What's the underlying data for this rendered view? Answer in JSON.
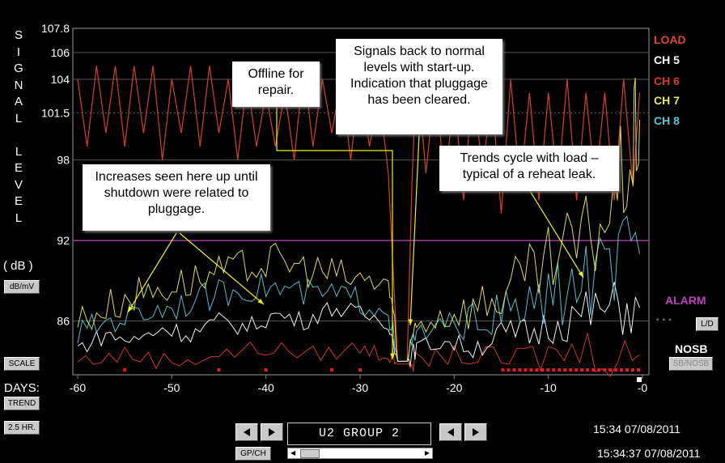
{
  "y_axis_letters": [
    "S",
    "I",
    "G",
    "N",
    "A",
    "L",
    "",
    "L",
    "E",
    "V",
    "E",
    "L"
  ],
  "unit_label": "( dB )",
  "buttons": {
    "db_mv": "dB/mV",
    "scale": "SCALE",
    "trend": "TREND",
    "hr": "2.5 HR.",
    "ld": "L/D",
    "sb_nosb": "SB/NOSB",
    "gp_ch": "GP/CH"
  },
  "days_label": "DAYS:",
  "legend": [
    {
      "label": "LOAD",
      "color": "#e0442a"
    },
    {
      "label": "CH 5",
      "color": "#ffffff"
    },
    {
      "label": "CH 6",
      "color": "#d83a2a"
    },
    {
      "label": "CH 7",
      "color": "#e8e860"
    },
    {
      "label": "CH 8",
      "color": "#58c8d8"
    }
  ],
  "alarm_label": "ALARM",
  "nosb_label": "NOSB",
  "group_label": "U2 GROUP 2",
  "clock_top": "15:34  07/08/2011",
  "clock_bottom": "15:34:37  07/08/2011",
  "callouts": {
    "offline": "Offline for repair.",
    "signals": "Signals back to normal levels with start-up. Indication that pluggage has been cleared.",
    "trends": "Trends cycle with load – typical of a reheat leak.",
    "increases": "Increases seen here up until shutdown were related to pluggage."
  },
  "chart_data": {
    "type": "line",
    "xlabel": "DAYS:",
    "ylabel": "SIGNAL LEVEL ( dB )",
    "xlim": [
      -60,
      0
    ],
    "ylim": [
      82,
      107.8
    ],
    "x_ticks": [
      -60,
      -50,
      -40,
      -30,
      -20,
      -10,
      0
    ],
    "x_tick_labels": [
      "-60",
      "-50",
      "-40",
      "-30",
      "-20",
      "-10",
      "-0"
    ],
    "y_ticks": [
      86,
      92,
      98,
      101.5,
      104,
      106,
      107.8
    ],
    "y_tick_labels": [
      "86",
      "92",
      "98",
      "101.5",
      "104",
      "106",
      "107.8"
    ],
    "alarm_level": 92,
    "series": [
      {
        "name": "LOAD",
        "color": "#e0442a",
        "points": [
          [
            -60,
            104
          ],
          [
            -59,
            99
          ],
          [
            -58,
            105
          ],
          [
            -57,
            100
          ],
          [
            -56,
            105
          ],
          [
            -55,
            99
          ],
          [
            -54,
            105
          ],
          [
            -53,
            100
          ],
          [
            -52,
            105
          ],
          [
            -51,
            98
          ],
          [
            -50,
            104
          ],
          [
            -49,
            100
          ],
          [
            -48,
            105
          ],
          [
            -47,
            99
          ],
          [
            -46,
            105
          ],
          [
            -45,
            100
          ],
          [
            -44,
            104
          ],
          [
            -43,
            98
          ],
          [
            -42,
            104
          ],
          [
            -41,
            99
          ],
          [
            -40,
            103
          ],
          [
            -39,
            99
          ],
          [
            -38,
            103
          ],
          [
            -37,
            98
          ],
          [
            -36,
            105
          ],
          [
            -35,
            99
          ],
          [
            -34,
            104
          ],
          [
            -33,
            100
          ],
          [
            -32,
            104
          ],
          [
            -31,
            98
          ],
          [
            -30,
            104
          ],
          [
            -29,
            99
          ],
          [
            -28,
            103
          ],
          [
            -27,
            97
          ],
          [
            -26,
            83
          ],
          [
            -25,
            83
          ],
          [
            -24.5,
            96
          ],
          [
            -24,
            105
          ],
          [
            -23,
            97
          ],
          [
            -22,
            104
          ],
          [
            -21,
            96
          ],
          [
            -20,
            103
          ],
          [
            -19,
            95
          ],
          [
            -18,
            104
          ],
          [
            -17,
            97
          ],
          [
            -16,
            103
          ],
          [
            -15,
            94
          ],
          [
            -14,
            104
          ],
          [
            -13,
            96
          ],
          [
            -12,
            103
          ],
          [
            -11,
            95
          ],
          [
            -10,
            103
          ],
          [
            -9,
            96
          ],
          [
            -8,
            104
          ],
          [
            -7,
            95
          ],
          [
            -6,
            103
          ],
          [
            -5,
            96
          ],
          [
            -4,
            103
          ],
          [
            -3,
            95
          ],
          [
            -2,
            104
          ],
          [
            -1,
            96
          ],
          [
            -0.3,
            103
          ]
        ]
      },
      {
        "name": "CH 5",
        "color": "#ffffff",
        "points": [
          [
            -60,
            84
          ],
          [
            -57,
            85
          ],
          [
            -54,
            84.5
          ],
          [
            -51,
            85.5
          ],
          [
            -48,
            85
          ],
          [
            -45,
            86
          ],
          [
            -42,
            85.5
          ],
          [
            -39,
            86.5
          ],
          [
            -36,
            86
          ],
          [
            -33,
            87
          ],
          [
            -30,
            86.5
          ],
          [
            -27,
            86
          ],
          [
            -26,
            83
          ],
          [
            -25,
            83
          ],
          [
            -24,
            84
          ],
          [
            -21,
            84.5
          ],
          [
            -18,
            84
          ],
          [
            -15,
            85
          ],
          [
            -12,
            85
          ],
          [
            -9,
            86
          ],
          [
            -6,
            86.5
          ],
          [
            -3,
            87
          ],
          [
            -0.3,
            87
          ]
        ]
      },
      {
        "name": "CH 6",
        "color": "#d83a2a",
        "points": [
          [
            -60,
            83
          ],
          [
            -55,
            83.5
          ],
          [
            -50,
            83
          ],
          [
            -45,
            83.5
          ],
          [
            -40,
            84
          ],
          [
            -35,
            83.5
          ],
          [
            -30,
            84
          ],
          [
            -27,
            83.5
          ],
          [
            -26,
            82.8
          ],
          [
            -25,
            82.8
          ],
          [
            -24,
            83
          ],
          [
            -20,
            83.5
          ],
          [
            -15,
            83
          ],
          [
            -10,
            83.5
          ],
          [
            -5,
            84
          ],
          [
            -0.3,
            83.5
          ]
        ]
      },
      {
        "name": "CH 7",
        "color": "#e8e860",
        "points": [
          [
            -60,
            86
          ],
          [
            -57,
            87
          ],
          [
            -54,
            88
          ],
          [
            -51,
            88.5
          ],
          [
            -48,
            89
          ],
          [
            -45,
            89.5
          ],
          [
            -42,
            90
          ],
          [
            -39,
            90.5
          ],
          [
            -36,
            90
          ],
          [
            -33,
            89.5
          ],
          [
            -30,
            89
          ],
          [
            -27,
            89
          ],
          [
            -26,
            83
          ],
          [
            -25,
            83
          ],
          [
            -24,
            86
          ],
          [
            -21,
            86.5
          ],
          [
            -18,
            87
          ],
          [
            -15,
            88
          ],
          [
            -12,
            89
          ],
          [
            -9,
            90.5
          ],
          [
            -6,
            92
          ],
          [
            -3,
            95
          ],
          [
            -1,
            99
          ],
          [
            -0.3,
            101
          ]
        ]
      },
      {
        "name": "CH 8",
        "color": "#58c8d8",
        "points": [
          [
            -60,
            85
          ],
          [
            -57,
            86
          ],
          [
            -54,
            86.5
          ],
          [
            -51,
            87
          ],
          [
            -48,
            87.5
          ],
          [
            -45,
            88
          ],
          [
            -42,
            88.5
          ],
          [
            -39,
            88.5
          ],
          [
            -36,
            88
          ],
          [
            -33,
            88
          ],
          [
            -30,
            87.5
          ],
          [
            -27,
            87
          ],
          [
            -26,
            83
          ],
          [
            -25,
            83
          ],
          [
            -24,
            85
          ],
          [
            -21,
            85.5
          ],
          [
            -18,
            86
          ],
          [
            -15,
            86.5
          ],
          [
            -12,
            87
          ],
          [
            -9,
            88
          ],
          [
            -6,
            89
          ],
          [
            -3,
            90
          ],
          [
            -0.3,
            91
          ]
        ]
      }
    ]
  }
}
